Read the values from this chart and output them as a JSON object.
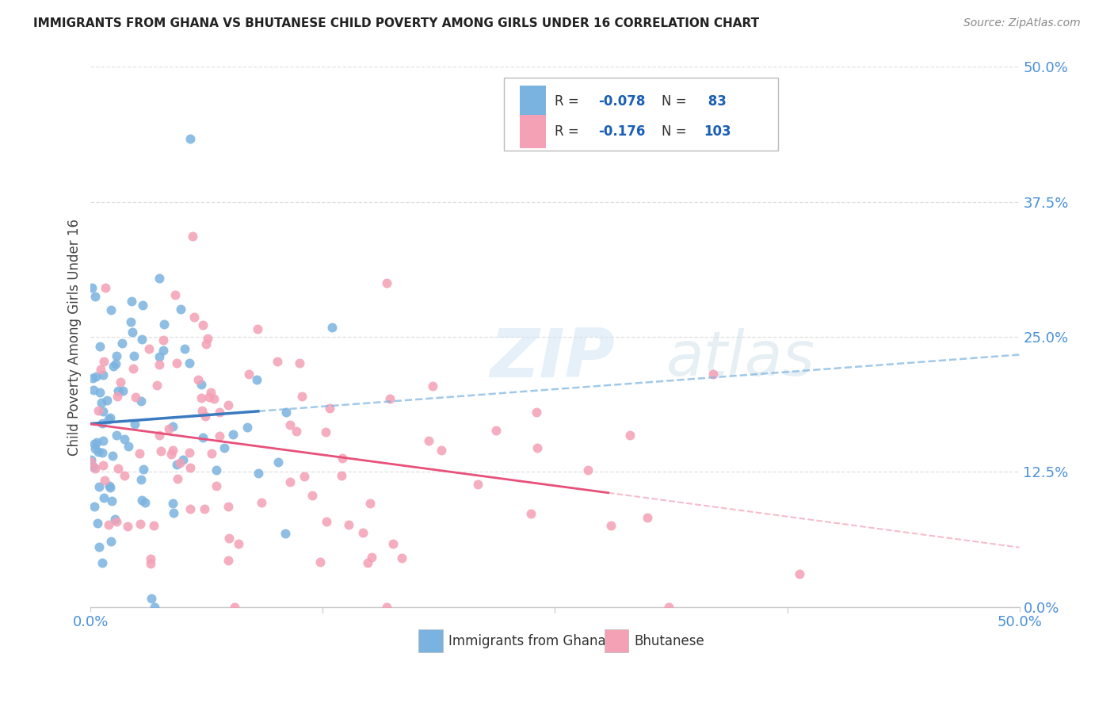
{
  "title": "IMMIGRANTS FROM GHANA VS BHUTANESE CHILD POVERTY AMONG GIRLS UNDER 16 CORRELATION CHART",
  "source": "Source: ZipAtlas.com",
  "ylabel": "Child Poverty Among Girls Under 16",
  "ytick_labels": [
    "0.0%",
    "12.5%",
    "25.0%",
    "37.5%",
    "50.0%"
  ],
  "ytick_values": [
    0,
    12.5,
    25.0,
    37.5,
    50.0
  ],
  "xtick_labels": [
    "0.0%",
    "",
    "",
    "",
    "50.0%"
  ],
  "xtick_values": [
    0,
    12.5,
    25.0,
    37.5,
    50.0
  ],
  "xlim": [
    0,
    50
  ],
  "ylim": [
    0,
    50
  ],
  "ghana_R": -0.078,
  "ghana_N": 83,
  "bhutanese_R": -0.176,
  "bhutanese_N": 103,
  "ghana_color": "#7ab3e0",
  "bhutanese_color": "#f4a0b5",
  "ghana_line_color": "#3a7abf",
  "bhutanese_line_color": "#e8507a",
  "legend_label_ghana": "Immigrants from Ghana",
  "legend_label_bhutanese": "Bhutanese",
  "watermark_zip": "ZIP",
  "watermark_atlas": "atlas",
  "background_color": "#ffffff",
  "grid_color": "#dddddd",
  "axis_label_color": "#4a90d9",
  "title_color": "#222222",
  "legend_value_color": "#1a5fb4"
}
